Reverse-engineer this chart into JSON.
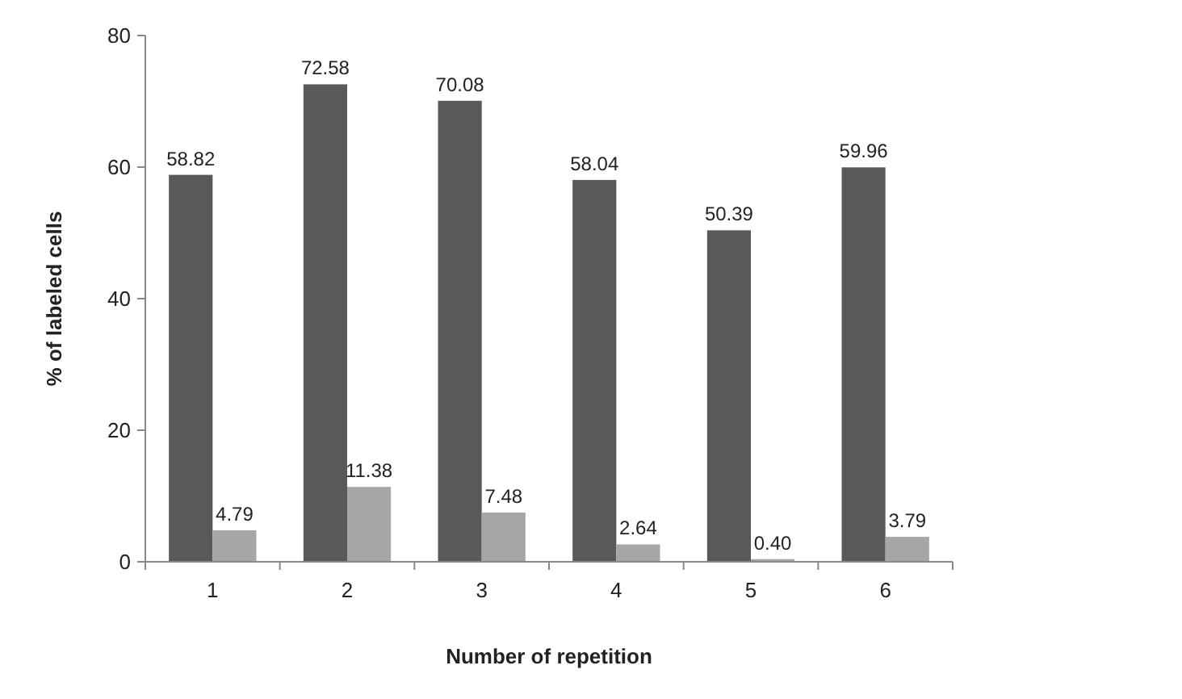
{
  "chart_data": {
    "type": "bar",
    "xlabel": "Number of repetition",
    "ylabel": "% of labeled cells",
    "categories": [
      "1",
      "2",
      "3",
      "4",
      "5",
      "6"
    ],
    "series": [
      {
        "color": "#595959",
        "values": [
          58.82,
          72.58,
          70.08,
          58.04,
          50.39,
          59.96
        ],
        "value_labels": [
          "58.82",
          "72.58",
          "70.08",
          "58.04",
          "50.39",
          "59.96"
        ]
      },
      {
        "color": "#a6a6a6",
        "values": [
          4.79,
          11.38,
          7.48,
          2.64,
          0.4,
          3.79
        ],
        "value_labels": [
          "4.79",
          "11.38",
          "7.48",
          "2.64",
          "0.40",
          "3.79"
        ]
      }
    ],
    "ylim": [
      0,
      80
    ],
    "yticks": [
      0,
      20,
      40,
      60,
      80
    ],
    "grid": false
  }
}
